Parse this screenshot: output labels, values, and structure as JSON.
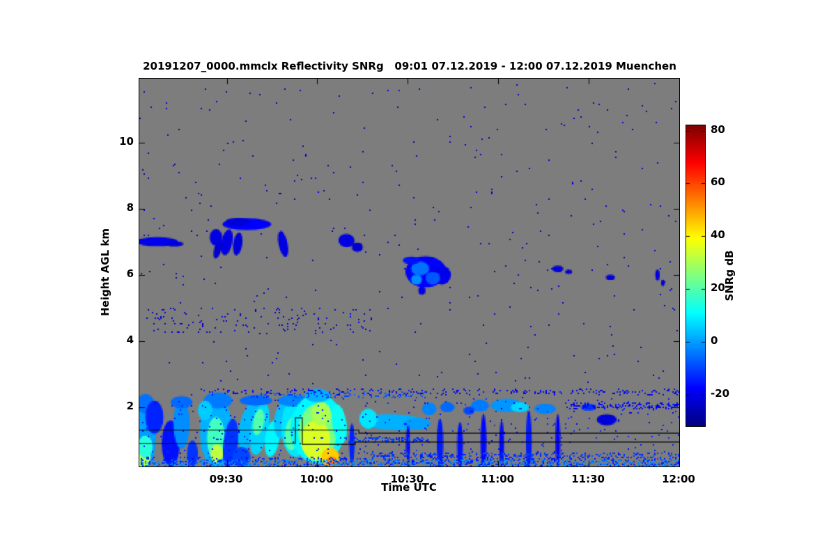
{
  "title": "20191207_0000.mmclx Reflectivity SNRg   09:01 07.12.2019 - 12:00 07.12.2019 Muenchen",
  "chart_data": {
    "type": "heatmap",
    "title": "20191207_0000.mmclx Reflectivity SNRg   09:01 07.12.2019 - 12:00 07.12.2019 Muenchen",
    "station": "Muenchen",
    "xlabel": "Time UTC",
    "ylabel": "Height AGL km",
    "x_range_hours": [
      9.0167,
      12.0
    ],
    "x_ticks": [
      {
        "value": 9.5,
        "label": "09:30"
      },
      {
        "value": 10.0,
        "label": "10:00"
      },
      {
        "value": 10.5,
        "label": "10:30"
      },
      {
        "value": 11.0,
        "label": "11:00"
      },
      {
        "value": 11.5,
        "label": "11:30"
      },
      {
        "value": 12.0,
        "label": "12:00"
      }
    ],
    "y_range_km": [
      0.21,
      11.94
    ],
    "y_ticks": [
      2,
      4,
      6,
      8,
      10
    ],
    "colorbar": {
      "label": "SNRg dB",
      "colormap": "jet",
      "vmin": -32,
      "vmax": 82,
      "ticks": [
        80,
        60,
        40,
        20,
        0,
        -20
      ]
    },
    "no_data_color": "#7d7d7d",
    "blob_format": "[time_hours, height_km, rx_hours, ry_km, SNRg_dB, rotation_deg]",
    "speckle_format": "[t0_hours, t1_hours, h0_km, h1_km, SNRg_dB, dot_count]",
    "features": {
      "blobs": [
        [
          9.115,
          7.02,
          0.115,
          0.14,
          -20,
          0
        ],
        [
          9.21,
          6.95,
          0.05,
          0.08,
          -22,
          0
        ],
        [
          9.61,
          7.55,
          0.135,
          0.18,
          -18,
          0
        ],
        [
          9.56,
          7.62,
          0.07,
          0.12,
          -22,
          0
        ],
        [
          9.5,
          7.0,
          0.03,
          0.4,
          -21,
          12
        ],
        [
          9.56,
          6.95,
          0.025,
          0.35,
          -22,
          8
        ],
        [
          9.45,
          6.8,
          0.02,
          0.3,
          -23,
          15
        ],
        [
          9.44,
          7.15,
          0.035,
          0.25,
          -21,
          0
        ],
        [
          9.81,
          6.95,
          0.025,
          0.4,
          -21,
          -12
        ],
        [
          10.16,
          7.05,
          0.045,
          0.2,
          -21,
          5
        ],
        [
          10.22,
          6.85,
          0.03,
          0.14,
          -23,
          0
        ],
        [
          10.6,
          6.1,
          0.115,
          0.48,
          -18,
          0
        ],
        [
          10.69,
          6.0,
          0.05,
          0.3,
          -20,
          0
        ],
        [
          10.57,
          6.2,
          0.05,
          0.22,
          -5,
          0
        ],
        [
          10.64,
          5.9,
          0.04,
          0.2,
          -8,
          0
        ],
        [
          10.55,
          5.85,
          0.03,
          0.15,
          -2,
          0
        ],
        [
          10.52,
          6.45,
          0.05,
          0.12,
          -16,
          0
        ],
        [
          10.58,
          5.52,
          0.02,
          0.12,
          -20,
          0
        ],
        [
          11.33,
          6.2,
          0.03,
          0.1,
          -22,
          0
        ],
        [
          11.39,
          6.1,
          0.02,
          0.08,
          -23,
          0
        ],
        [
          11.62,
          5.92,
          0.025,
          0.08,
          -22,
          0
        ],
        [
          11.88,
          6.0,
          0.012,
          0.18,
          -21,
          0
        ],
        [
          11.91,
          5.75,
          0.01,
          0.1,
          -22,
          0
        ],
        [
          9.05,
          1.2,
          0.06,
          1.05,
          0,
          0
        ],
        [
          9.03,
          0.5,
          0.05,
          0.3,
          30,
          0
        ],
        [
          9.05,
          0.8,
          0.04,
          0.35,
          15,
          0
        ],
        [
          9.05,
          2.1,
          0.05,
          0.3,
          -5,
          0
        ],
        [
          9.1,
          1.7,
          0.05,
          0.5,
          -14,
          0
        ],
        [
          9.19,
          0.9,
          0.05,
          0.7,
          -16,
          0
        ],
        [
          9.25,
          1.5,
          0.045,
          0.75,
          -2,
          0
        ],
        [
          9.25,
          2.15,
          0.06,
          0.18,
          -6,
          0
        ],
        [
          9.31,
          0.6,
          0.03,
          0.4,
          -12,
          0
        ],
        [
          9.44,
          1.25,
          0.09,
          1.05,
          2,
          0
        ],
        [
          9.44,
          1.05,
          0.05,
          0.65,
          18,
          0
        ],
        [
          9.445,
          0.6,
          0.035,
          0.28,
          32,
          0
        ],
        [
          9.45,
          2.2,
          0.08,
          0.25,
          -4,
          0
        ],
        [
          9.52,
          0.9,
          0.04,
          0.75,
          -12,
          6
        ],
        [
          9.38,
          1.9,
          0.04,
          0.3,
          5,
          0
        ],
        [
          9.62,
          1.45,
          0.05,
          0.75,
          3,
          14
        ],
        [
          9.68,
          1.35,
          0.05,
          0.8,
          6,
          10
        ],
        [
          9.675,
          1.55,
          0.03,
          0.4,
          20,
          10
        ],
        [
          9.75,
          1.05,
          0.04,
          0.55,
          10,
          8
        ],
        [
          9.81,
          1.6,
          0.05,
          0.55,
          4,
          6
        ],
        [
          9.66,
          2.2,
          0.09,
          0.16,
          -6,
          0
        ],
        [
          9.58,
          0.5,
          0.05,
          0.3,
          -10,
          0
        ],
        [
          9.88,
          1.4,
          0.08,
          0.9,
          8,
          0
        ],
        [
          9.86,
          1.2,
          0.04,
          0.5,
          20,
          5
        ],
        [
          9.92,
          0.9,
          0.03,
          0.3,
          26,
          0
        ],
        [
          9.87,
          2.2,
          0.09,
          0.18,
          -3,
          0
        ],
        [
          10.0,
          1.35,
          0.15,
          1.05,
          10,
          0
        ],
        [
          10.0,
          1.25,
          0.105,
          0.85,
          24,
          0
        ],
        [
          9.99,
          1.0,
          0.08,
          0.6,
          35,
          0
        ],
        [
          10.02,
          1.8,
          0.055,
          0.35,
          30,
          0
        ],
        [
          10.07,
          0.5,
          0.05,
          0.28,
          45,
          0
        ],
        [
          10.08,
          0.35,
          0.028,
          0.14,
          55,
          0
        ],
        [
          10.0,
          2.35,
          0.07,
          0.2,
          2,
          0
        ],
        [
          10.12,
          1.5,
          0.04,
          0.6,
          12,
          -8
        ],
        [
          10.42,
          1.55,
          0.19,
          0.24,
          2,
          2
        ],
        [
          10.28,
          1.65,
          0.05,
          0.3,
          8,
          0
        ],
        [
          10.55,
          1.5,
          0.08,
          0.17,
          0,
          0
        ],
        [
          10.19,
          0.9,
          0.015,
          0.6,
          -14,
          0
        ],
        [
          10.5,
          0.9,
          0.013,
          0.55,
          -16,
          0
        ],
        [
          10.62,
          1.95,
          0.04,
          0.18,
          -3,
          0
        ],
        [
          10.72,
          2.0,
          0.04,
          0.15,
          -6,
          0
        ],
        [
          10.68,
          0.9,
          0.018,
          0.75,
          -15,
          0
        ],
        [
          10.79,
          0.85,
          0.016,
          0.7,
          -16,
          0
        ],
        [
          10.92,
          0.95,
          0.016,
          0.85,
          -17,
          0
        ],
        [
          10.9,
          2.05,
          0.05,
          0.18,
          -4,
          0
        ],
        [
          10.84,
          1.9,
          0.03,
          0.12,
          -10,
          0
        ],
        [
          11.05,
          2.05,
          0.09,
          0.2,
          -1,
          0
        ],
        [
          11.12,
          2.0,
          0.05,
          0.15,
          6,
          0
        ],
        [
          11.17,
          1.0,
          0.016,
          0.9,
          -15,
          0
        ],
        [
          11.02,
          0.9,
          0.013,
          0.7,
          -17,
          0
        ],
        [
          11.26,
          1.95,
          0.06,
          0.15,
          -3,
          0
        ],
        [
          11.33,
          1.0,
          0.013,
          0.8,
          -18,
          0
        ],
        [
          11.6,
          1.62,
          0.055,
          0.17,
          -22,
          0
        ],
        [
          11.5,
          2.0,
          0.04,
          0.1,
          -12,
          0
        ]
      ],
      "speckle_regions": [
        [
          9.02,
          12.0,
          2.7,
          11.8,
          -24,
          330
        ],
        [
          9.05,
          10.3,
          4.2,
          5.0,
          -23,
          130
        ],
        [
          9.25,
          12.0,
          2.38,
          2.55,
          -20,
          240
        ],
        [
          9.02,
          12.0,
          0.5,
          2.3,
          -16,
          320
        ],
        [
          9.02,
          12.0,
          0.22,
          0.5,
          -14,
          700
        ],
        [
          9.02,
          12.0,
          0.22,
          0.42,
          -4,
          600
        ],
        [
          10.3,
          12.0,
          0.5,
          0.62,
          -12,
          240
        ],
        [
          10.15,
          10.62,
          0.95,
          1.08,
          -12,
          110
        ],
        [
          11.4,
          12.0,
          1.95,
          2.12,
          -18,
          150
        ],
        [
          9.6,
          10.6,
          2.28,
          2.45,
          -10,
          120
        ]
      ],
      "overlay_lines": [
        [
          [
            9.0167,
            1.31
          ],
          [
            10.23,
            1.31
          ],
          [
            10.23,
            1.22
          ],
          [
            12.0,
            1.22
          ]
        ],
        [
          [
            9.0167,
            0.905
          ],
          [
            9.879,
            0.905
          ],
          [
            9.879,
            1.68
          ],
          [
            9.917,
            1.68
          ],
          [
            9.917,
            0.88
          ],
          [
            10.21,
            0.88
          ],
          [
            10.21,
            0.95
          ],
          [
            12.0,
            0.95
          ]
        ]
      ]
    }
  }
}
